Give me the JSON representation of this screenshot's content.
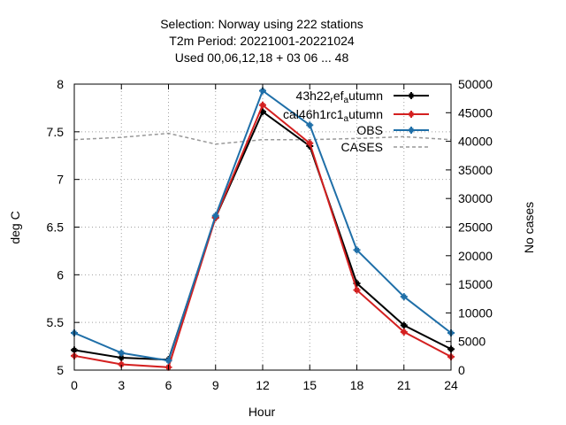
{
  "chart_data": {
    "type": "line",
    "title_lines": [
      "Selection: Norway using   222 stations",
      "T2m   Period: 20221001-20221024",
      "Used  00,06,12,18  + 03 06 ... 48"
    ],
    "xlabel": "Hour",
    "ylabel": "deg C",
    "y2label": "No cases",
    "xlim": [
      0,
      24
    ],
    "ylim": [
      5,
      8
    ],
    "y2lim": [
      0,
      50000
    ],
    "x_ticks": [
      0,
      3,
      6,
      9,
      12,
      15,
      18,
      21,
      24
    ],
    "y_ticks": [
      5,
      5.5,
      6,
      6.5,
      7,
      7.5,
      8
    ],
    "y2_ticks": [
      0,
      5000,
      10000,
      15000,
      20000,
      25000,
      30000,
      35000,
      40000,
      45000,
      50000
    ],
    "grid": true,
    "legend_position": "top-right",
    "x": [
      0,
      3,
      6,
      9,
      12,
      15,
      18,
      21,
      24
    ],
    "series": [
      {
        "label_parts": [
          "43h22",
          "r",
          "ef",
          "a",
          "utumn"
        ],
        "color": "#000000",
        "axis": "y",
        "values": [
          5.21,
          5.13,
          5.11,
          6.6,
          7.71,
          7.35,
          5.91,
          5.47,
          5.22
        ]
      },
      {
        "label_parts": [
          "cal46h1rc1",
          "a",
          "utumn"
        ],
        "color": "#d42020",
        "axis": "y",
        "values": [
          5.15,
          5.06,
          5.03,
          6.6,
          7.78,
          7.38,
          5.84,
          5.4,
          5.14
        ]
      },
      {
        "name": "OBS",
        "color": "#1f6fa8",
        "axis": "y",
        "values": [
          5.39,
          5.18,
          5.1,
          6.62,
          7.93,
          7.57,
          6.26,
          5.77,
          5.39
        ]
      },
      {
        "name": "CASES",
        "color": "#999999",
        "axis": "y2",
        "dashed": true,
        "values": [
          40300,
          40700,
          41400,
          39500,
          40300,
          40300,
          40500,
          40800,
          40300
        ]
      }
    ]
  }
}
